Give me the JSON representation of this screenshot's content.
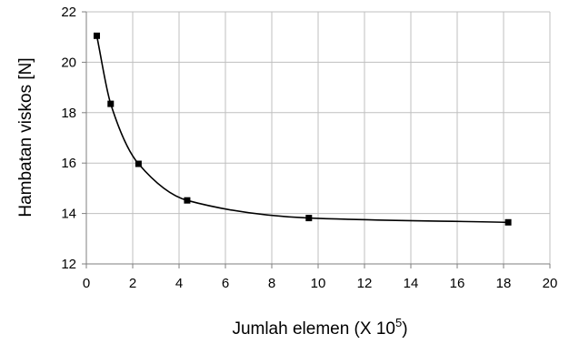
{
  "chart_data": {
    "type": "line",
    "title": "",
    "xlabel": "Jumlah elemen (X 10",
    "xlabel_sup": "5",
    "xlabel_suffix": ")",
    "ylabel": "Hambatan viskos [N]",
    "xlim": [
      0,
      20
    ],
    "ylim": [
      12,
      22
    ],
    "xticks": [
      "0",
      "2",
      "4",
      "6",
      "8",
      "10",
      "12",
      "14",
      "16",
      "18",
      "20"
    ],
    "yticks": [
      "12",
      "14",
      "16",
      "18",
      "20",
      "22"
    ],
    "grid": true,
    "smooth": true,
    "series": [
      {
        "x": [
          0.45,
          1.05,
          2.25,
          4.35,
          9.6,
          18.2
        ],
        "y": [
          21.05,
          18.35,
          15.97,
          14.52,
          13.82,
          13.65
        ],
        "color": "#000000",
        "marker": "square"
      }
    ]
  }
}
